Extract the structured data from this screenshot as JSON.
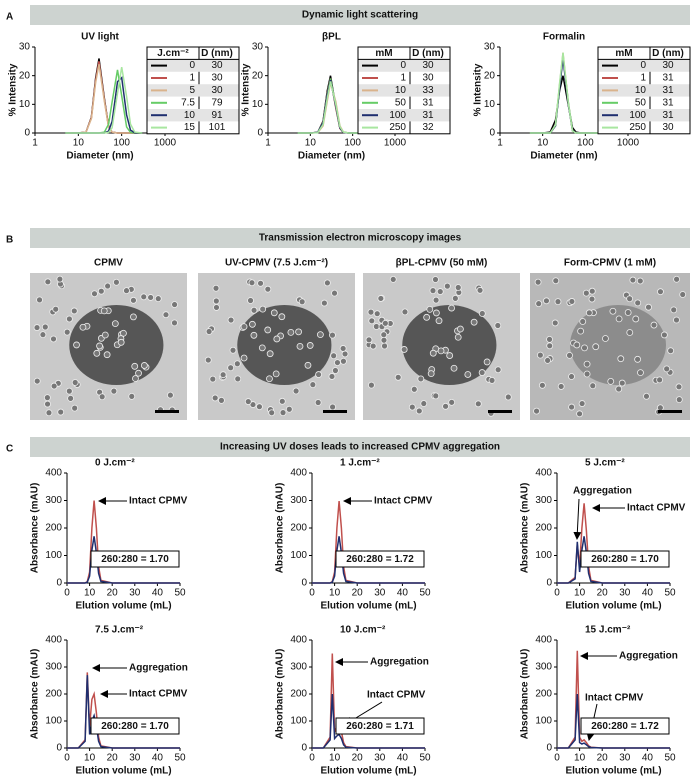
{
  "panels": [
    {
      "label": "A",
      "header": "Dynamic light scattering"
    },
    {
      "label": "B",
      "header": "Transmission electron microscopy images",
      "images": [
        "CPMV",
        "UV-CPMV (7.5 J.cm⁻²)",
        "βPL-CPMV (50 mM)",
        "Form-CPMV (1 mM)"
      ]
    },
    {
      "label": "C",
      "header": "Increasing UV doses leads to increased CPMV aggregation"
    }
  ],
  "chart_data": [
    {
      "type": "line",
      "title": "UV light",
      "x_label": "Diameter (nm)",
      "y_label": "% Intensity",
      "xlog": true,
      "x": [
        5,
        10,
        15,
        20,
        25,
        30,
        40,
        50,
        60,
        80,
        100,
        130,
        160,
        200,
        300
      ],
      "xlim": [
        1,
        1000
      ],
      "xticks": [
        1,
        10,
        100,
        1000
      ],
      "ylim": [
        0,
        30
      ],
      "yticks": [
        0,
        10,
        20,
        30
      ],
      "legend_header": [
        "J.cm⁻²",
        "D (nm)"
      ],
      "series": [
        {
          "name": "0",
          "color": "#000000",
          "diameter": 30,
          "values": [
            0,
            0,
            0.3,
            5.5,
            19,
            26,
            12,
            2.2,
            0.3,
            0,
            0,
            0,
            0,
            0,
            0
          ]
        },
        {
          "name": "1",
          "color": "#c0504d",
          "diameter": 30,
          "values": [
            0,
            0,
            0.3,
            5.3,
            18.3,
            25,
            11.5,
            2.1,
            0.3,
            0,
            0,
            0,
            0,
            0,
            0
          ]
        },
        {
          "name": "5",
          "color": "#d9b38c",
          "diameter": 30,
          "values": [
            0,
            0,
            0.3,
            5,
            17.5,
            24,
            11,
            2,
            0.3,
            0,
            0,
            0,
            0,
            0,
            0
          ]
        },
        {
          "name": "7.5",
          "color": "#66cc66",
          "diameter": 79,
          "values": [
            0,
            0,
            0,
            0,
            0,
            0,
            0.3,
            3.1,
            10.8,
            22,
            13,
            2.1,
            0.2,
            0,
            0
          ]
        },
        {
          "name": "10",
          "color": "#1f2f6f",
          "diameter": 91,
          "values": [
            0,
            0,
            0,
            0,
            0,
            0,
            0,
            0.7,
            4,
            17.9,
            19.3,
            6.3,
            1,
            0.1,
            0
          ]
        },
        {
          "name": "15",
          "color": "#a8e6a0",
          "diameter": 101,
          "values": [
            0,
            0,
            0,
            0,
            0,
            0,
            0,
            0.2,
            1.8,
            13.8,
            23,
            12.7,
            3.1,
            0.3,
            0
          ]
        }
      ]
    },
    {
      "type": "line",
      "title": "βPL",
      "x_label": "Diameter (nm)",
      "y_label": "% Intensity",
      "xlog": true,
      "x": [
        5,
        10,
        15,
        20,
        25,
        30,
        40,
        50,
        60,
        80,
        100,
        130,
        160,
        200,
        300
      ],
      "xlim": [
        1,
        1000
      ],
      "xticks": [
        1,
        10,
        100,
        1000
      ],
      "ylim": [
        0,
        30
      ],
      "yticks": [
        0,
        10,
        20,
        30
      ],
      "legend_header": [
        "mM",
        "D (nm)"
      ],
      "series": [
        {
          "name": "0",
          "color": "#000000",
          "diameter": 30,
          "values": [
            0,
            0,
            0.2,
            4.2,
            14.6,
            20,
            9.2,
            1.7,
            0.2,
            0,
            0,
            0,
            0,
            0,
            0
          ]
        },
        {
          "name": "1",
          "color": "#c0504d",
          "diameter": 30,
          "values": [
            0,
            0,
            0.2,
            4,
            13.9,
            19,
            8.7,
            1.6,
            0.2,
            0,
            0,
            0,
            0,
            0,
            0
          ]
        },
        {
          "name": "10",
          "color": "#d9b38c",
          "diameter": 33,
          "values": [
            0,
            0,
            0.1,
            2.5,
            11,
            17.5,
            11,
            2.5,
            0.4,
            0,
            0,
            0,
            0,
            0,
            0
          ]
        },
        {
          "name": "50",
          "color": "#66cc66",
          "diameter": 31,
          "values": [
            0,
            0,
            0.2,
            3.8,
            13.5,
            19,
            9.5,
            1.9,
            0.3,
            0,
            0,
            0,
            0,
            0,
            0
          ]
        },
        {
          "name": "100",
          "color": "#1f2f6f",
          "diameter": 31,
          "values": [
            0,
            0,
            0.2,
            3.7,
            13.2,
            18.5,
            9.3,
            1.8,
            0.2,
            0,
            0,
            0,
            0,
            0,
            0
          ]
        },
        {
          "name": "250",
          "color": "#a8e6a0",
          "diameter": 32,
          "values": [
            0,
            0,
            0.1,
            3,
            12,
            18,
            10,
            2.2,
            0.3,
            0,
            0,
            0,
            0,
            0,
            0
          ]
        }
      ]
    },
    {
      "type": "line",
      "title": "Formalin",
      "x_label": "Diameter (nm)",
      "y_label": "% Intensity",
      "xlog": true,
      "x": [
        5,
        10,
        15,
        20,
        25,
        30,
        40,
        50,
        60,
        80,
        100,
        130,
        160,
        200,
        300
      ],
      "xlim": [
        1,
        1000
      ],
      "xticks": [
        1,
        10,
        100,
        1000
      ],
      "ylim": [
        0,
        30
      ],
      "yticks": [
        0,
        10,
        20,
        30
      ],
      "legend_header": [
        "mM",
        "D (nm)"
      ],
      "series": [
        {
          "name": "0",
          "color": "#000000",
          "diameter": 30,
          "values": [
            0,
            0,
            0.3,
            4.5,
            14.8,
            20,
            9.5,
            1.9,
            0.3,
            0,
            0,
            0,
            0,
            0,
            0
          ]
        },
        {
          "name": "1",
          "color": "#c0504d",
          "diameter": 31,
          "values": [
            0,
            0,
            0,
            2.6,
            16.5,
            27,
            10,
            0.8,
            0,
            0,
            0,
            0,
            0,
            0,
            0
          ]
        },
        {
          "name": "10",
          "color": "#d9b38c",
          "diameter": 31,
          "values": [
            0,
            0,
            0,
            2.7,
            17,
            28,
            10.5,
            0.8,
            0,
            0,
            0,
            0,
            0,
            0,
            0
          ]
        },
        {
          "name": "50",
          "color": "#66cc66",
          "diameter": 31,
          "values": [
            0,
            0,
            0,
            2.5,
            16,
            27,
            10.5,
            0.9,
            0,
            0,
            0,
            0,
            0,
            0,
            0
          ]
        },
        {
          "name": "100",
          "color": "#1f2f6f",
          "diameter": 31,
          "values": [
            0,
            0,
            0,
            2.5,
            15.8,
            26,
            9.8,
            0.8,
            0,
            0,
            0,
            0,
            0,
            0,
            0
          ]
        },
        {
          "name": "250",
          "color": "#a8e6a0",
          "diameter": 30,
          "values": [
            0,
            0,
            0,
            2.8,
            17.4,
            28,
            10.2,
            0.7,
            0,
            0,
            0,
            0,
            0,
            0,
            0
          ]
        }
      ]
    },
    {
      "type": "line",
      "title": "0 J.cm⁻²",
      "x_label": "Elution volume (mL)",
      "y_label": "Absorbance (mAU)",
      "x": [
        0,
        5,
        8,
        9,
        10,
        11,
        12,
        13,
        14,
        15,
        20,
        30,
        40,
        50
      ],
      "xlim": [
        0,
        50
      ],
      "xticks": [
        0,
        10,
        20,
        30,
        40,
        50
      ],
      "ylim": [
        0,
        400
      ],
      "yticks": [
        0,
        100,
        200,
        300,
        400
      ],
      "series": [
        {
          "color": "#c0504d",
          "values": [
            0,
            0,
            0,
            5,
            40,
            200,
            300,
            200,
            60,
            10,
            0,
            0,
            0,
            0
          ]
        },
        {
          "color": "#1f2f6f",
          "values": [
            0,
            0,
            0,
            3,
            25,
            120,
            170,
            110,
            35,
            6,
            0,
            0,
            0,
            0
          ]
        }
      ],
      "annotations": [
        "Intact CPMV"
      ],
      "ratio": "260:280 = 1.70"
    },
    {
      "type": "line",
      "title": "1 J.cm⁻²",
      "x_label": "Elution volume (mL)",
      "y_label": "Absorbance (mAU)",
      "x": [
        0,
        5,
        8,
        9,
        10,
        11,
        12,
        13,
        14,
        15,
        20,
        30,
        40,
        50
      ],
      "xlim": [
        0,
        50
      ],
      "xticks": [
        0,
        10,
        20,
        30,
        40,
        50
      ],
      "ylim": [
        0,
        400
      ],
      "yticks": [
        0,
        100,
        200,
        300,
        400
      ],
      "series": [
        {
          "color": "#c0504d",
          "values": [
            0,
            0,
            0,
            5,
            40,
            200,
            298,
            200,
            60,
            10,
            0,
            0,
            0,
            0
          ]
        },
        {
          "color": "#1f2f6f",
          "values": [
            0,
            0,
            0,
            3,
            25,
            118,
            170,
            110,
            35,
            6,
            0,
            0,
            0,
            0
          ]
        }
      ],
      "annotations": [
        "Intact CPMV"
      ],
      "ratio": "260:280 = 1.72"
    },
    {
      "type": "line",
      "title": "5 J.cm⁻²",
      "x_label": "Elution volume (mL)",
      "y_label": "Absorbance (mAU)",
      "x": [
        0,
        5,
        8,
        9,
        10,
        11,
        12,
        13,
        14,
        15,
        20,
        30,
        40,
        50
      ],
      "xlim": [
        0,
        50
      ],
      "xticks": [
        0,
        10,
        20,
        30,
        40,
        50
      ],
      "ylim": [
        0,
        400
      ],
      "yticks": [
        0,
        100,
        200,
        300,
        400
      ],
      "series": [
        {
          "color": "#c0504d",
          "values": [
            0,
            0,
            20,
            140,
            60,
            200,
            290,
            190,
            60,
            10,
            0,
            0,
            0,
            0
          ]
        },
        {
          "color": "#1f2f6f",
          "values": [
            0,
            0,
            15,
            150,
            40,
            120,
            170,
            110,
            35,
            6,
            0,
            0,
            0,
            0
          ]
        }
      ],
      "annotations": [
        "Aggregation",
        "Intact CPMV"
      ],
      "ratio": "260:280 = 1.70"
    },
    {
      "type": "line",
      "title": "7.5 J.cm⁻²",
      "x_label": "Elution volume (mL)",
      "y_label": "Absorbance (mAU)",
      "x": [
        0,
        5,
        8,
        9,
        10,
        11,
        12,
        13,
        14,
        15,
        20,
        30,
        40,
        50
      ],
      "xlim": [
        0,
        50
      ],
      "xticks": [
        0,
        10,
        20,
        30,
        40,
        50
      ],
      "ylim": [
        0,
        400
      ],
      "yticks": [
        0,
        100,
        200,
        300,
        400
      ],
      "series": [
        {
          "color": "#c0504d",
          "values": [
            0,
            0,
            30,
            280,
            80,
            180,
            200,
            130,
            40,
            8,
            0,
            0,
            0,
            0
          ]
        },
        {
          "color": "#1f2f6f",
          "values": [
            0,
            0,
            25,
            270,
            50,
            100,
            120,
            80,
            25,
            5,
            0,
            0,
            0,
            0
          ]
        }
      ],
      "annotations": [
        "Aggregation",
        "Intact CPMV"
      ],
      "ratio": "260:280 = 1.70"
    },
    {
      "type": "line",
      "title": "10 J.cm⁻²",
      "x_label": "Elution volume (mL)",
      "y_label": "Absorbance (mAU)",
      "x": [
        0,
        5,
        8,
        9,
        10,
        11,
        12,
        13,
        14,
        15,
        20,
        30,
        40,
        50
      ],
      "xlim": [
        0,
        50
      ],
      "xticks": [
        0,
        10,
        20,
        30,
        40,
        50
      ],
      "ylim": [
        0,
        400
      ],
      "yticks": [
        0,
        100,
        200,
        300,
        400
      ],
      "series": [
        {
          "color": "#c0504d",
          "values": [
            0,
            0,
            40,
            350,
            60,
            80,
            90,
            60,
            20,
            5,
            0,
            0,
            0,
            0
          ]
        },
        {
          "color": "#1f2f6f",
          "values": [
            0,
            0,
            30,
            200,
            35,
            45,
            50,
            35,
            12,
            3,
            0,
            0,
            0,
            0
          ]
        }
      ],
      "annotations": [
        "Aggregation",
        "Intact CPMV"
      ],
      "ratio": "260:280 = 1.71"
    },
    {
      "type": "line",
      "title": "15 J.cm⁻²",
      "x_label": "Elution volume (mL)",
      "y_label": "Absorbance (mAU)",
      "x": [
        0,
        5,
        8,
        9,
        10,
        11,
        12,
        13,
        14,
        15,
        20,
        30,
        40,
        50
      ],
      "xlim": [
        0,
        50
      ],
      "xticks": [
        0,
        10,
        20,
        30,
        40,
        50
      ],
      "ylim": [
        0,
        400
      ],
      "yticks": [
        0,
        100,
        200,
        300,
        400
      ],
      "series": [
        {
          "color": "#c0504d",
          "values": [
            0,
            0,
            40,
            360,
            40,
            25,
            30,
            20,
            8,
            3,
            0,
            0,
            0,
            0
          ]
        },
        {
          "color": "#1f2f6f",
          "values": [
            0,
            0,
            30,
            200,
            20,
            15,
            18,
            12,
            5,
            2,
            0,
            0,
            0,
            0
          ]
        }
      ],
      "annotations": [
        "Aggregation",
        "Intact CPMV"
      ],
      "ratio": "260:280 = 1.72"
    }
  ]
}
